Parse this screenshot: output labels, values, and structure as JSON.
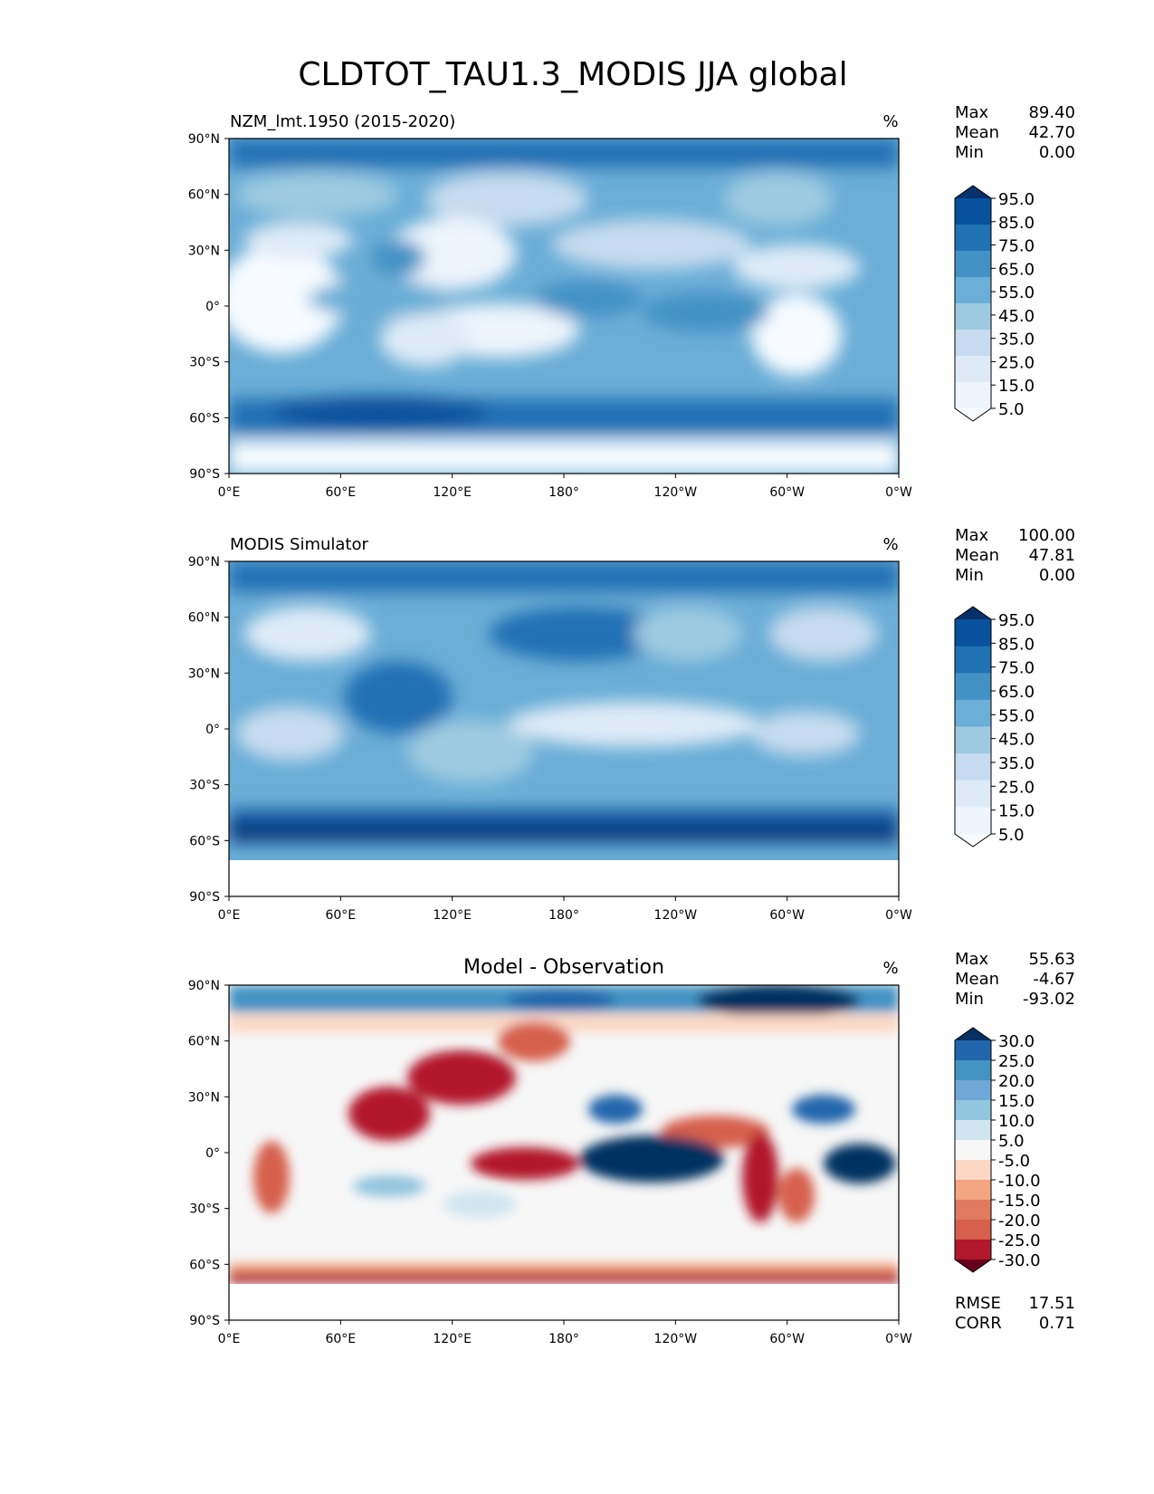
{
  "figure": {
    "title": "CLDTOT_TAU1.3_MODIS JJA global"
  },
  "axes": {
    "lat_ticks": [
      "90°N",
      "60°N",
      "30°N",
      "0°",
      "30°S",
      "60°S",
      "90°S"
    ],
    "lon_ticks": [
      "0°E",
      "60°E",
      "120°E",
      "180°",
      "120°W",
      "60°W",
      "0°W"
    ],
    "units": "%"
  },
  "chart_data": [
    {
      "type": "heatmap",
      "title": "",
      "subtitle": "NZM_lmt.1950 (2015-2020)",
      "units": "%",
      "stats": [
        {
          "label": "Max",
          "value": "89.40"
        },
        {
          "label": "Mean",
          "value": "42.70"
        },
        {
          "label": "Min",
          "value": "0.00"
        }
      ],
      "colorbar_levels": [
        "95.0",
        "85.0",
        "75.0",
        "65.0",
        "55.0",
        "45.0",
        "35.0",
        "25.0",
        "15.0",
        "5.0"
      ],
      "colorbar_colors": [
        "#08306b",
        "#08519c",
        "#2171b5",
        "#4292c6",
        "#6baed6",
        "#9ecae1",
        "#c6dbef",
        "#deebf7",
        "#eef5fc",
        "#f7fbff"
      ],
      "xlim": [
        0,
        360
      ],
      "ylim": [
        -90,
        90
      ],
      "extra_stats": []
    },
    {
      "type": "heatmap",
      "title": "",
      "subtitle": "MODIS Simulator",
      "units": "%",
      "stats": [
        {
          "label": "Max",
          "value": "100.00"
        },
        {
          "label": "Mean",
          "value": "47.81"
        },
        {
          "label": "Min",
          "value": "0.00"
        }
      ],
      "colorbar_levels": [
        "95.0",
        "85.0",
        "75.0",
        "65.0",
        "55.0",
        "45.0",
        "35.0",
        "25.0",
        "15.0",
        "5.0"
      ],
      "colorbar_colors": [
        "#08306b",
        "#08519c",
        "#2171b5",
        "#4292c6",
        "#6baed6",
        "#9ecae1",
        "#c6dbef",
        "#deebf7",
        "#eef5fc",
        "#f7fbff"
      ],
      "xlim": [
        0,
        360
      ],
      "ylim": [
        -90,
        90
      ],
      "extra_stats": []
    },
    {
      "type": "heatmap",
      "title": "Model - Observation",
      "subtitle": "",
      "units": "%",
      "stats": [
        {
          "label": "Max",
          "value": "55.63"
        },
        {
          "label": "Mean",
          "value": "-4.67"
        },
        {
          "label": "Min",
          "value": "-93.02"
        }
      ],
      "colorbar_levels": [
        "30.0",
        "25.0",
        "20.0",
        "15.0",
        "10.0",
        "5.0",
        "-5.0",
        "-10.0",
        "-15.0",
        "-20.0",
        "-25.0",
        "-30.0"
      ],
      "colorbar_colors": [
        "#053061",
        "#2166ac",
        "#4393c3",
        "#6fa8d6",
        "#92c5de",
        "#d1e5f0",
        "#f7f7f7",
        "#fbd7c4",
        "#f4a582",
        "#e07a60",
        "#d6604d",
        "#b2182b",
        "#67001f"
      ],
      "xlim": [
        0,
        360
      ],
      "ylim": [
        -90,
        90
      ],
      "extra_stats": [
        {
          "label": "RMSE",
          "value": "17.51"
        },
        {
          "label": "CORR",
          "value": "0.71"
        }
      ]
    }
  ]
}
